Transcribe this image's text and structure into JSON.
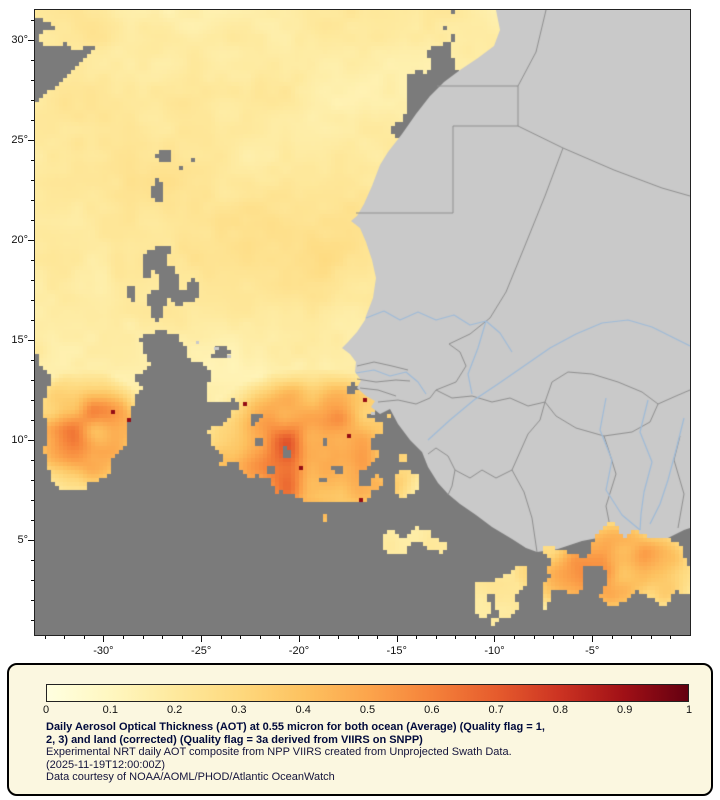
{
  "map": {
    "lat_ticks": [
      {
        "label": "30°",
        "value": 30
      },
      {
        "label": "25°",
        "value": 25
      },
      {
        "label": "20°",
        "value": 20
      },
      {
        "label": "15°",
        "value": 15
      },
      {
        "label": "10°",
        "value": 10
      },
      {
        "label": "5°",
        "value": 5
      }
    ],
    "lon_ticks": [
      {
        "label": "-30°",
        "value": -30
      },
      {
        "label": "-25°",
        "value": -25
      },
      {
        "label": "-20°",
        "value": -20
      },
      {
        "label": "-15°",
        "value": -15
      },
      {
        "label": "-10°",
        "value": -10
      },
      {
        "label": "-5°",
        "value": -5
      }
    ],
    "colors": {
      "no_data": "#7b7b7b",
      "land": "#c9c9c9",
      "country_border": "#8f8f8f",
      "river": "#9fbbd8",
      "frame": "#222222",
      "axis_text": "#111111"
    }
  },
  "legend": {
    "panel_bg": "#fbf7e0",
    "title_color": "#000a3c",
    "text_color": "#14143c",
    "colorbar": {
      "min": 0,
      "max": 1,
      "tick_labels": [
        "0",
        "0.1",
        "0.2",
        "0.3",
        "0.4",
        "0.5",
        "0.6",
        "0.7",
        "0.8",
        "0.9",
        "1"
      ],
      "stops": [
        "#ffffe0",
        "#fff7c0",
        "#fee99d",
        "#fed97e",
        "#fdc260",
        "#fca54c",
        "#f5823a",
        "#e65c2d",
        "#cc3322",
        "#a01016",
        "#640010"
      ]
    },
    "title_lines": [
      "Daily Aerosol Optical Thickness (AOT) at 0.55 micron for both ocean (Average) (Quality flag = 1,",
      "2, 3) and land (corrected) (Quality flag = 3a derived from VIIRS on SNPP)"
    ],
    "description": "Experimental NRT daily AOT composite from NPP VIIRS created from Unprojected Swath Data.",
    "timestamp": "(2025-11-19T12:00:00Z)",
    "courtesy": "Data courtesy of NOAA/AOML/PHOD/Atlantic OceanWatch"
  }
}
